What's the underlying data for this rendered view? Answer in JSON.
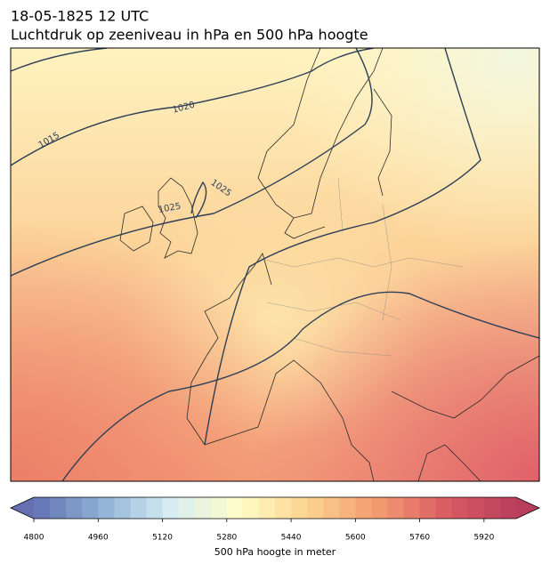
{
  "title": {
    "line1": "18-05-1825 12 UTC",
    "line2": "Luchtdruk op zeeniveau in hPa en 500 hPa hoogte"
  },
  "contour_labels": [
    "1015",
    "1020",
    "1025",
    "1025"
  ],
  "colorbar": {
    "label": "500 hPa hoogte in meter",
    "lim": [
      4800,
      6000
    ],
    "step": 40,
    "ticks": [
      4800,
      4960,
      5120,
      5280,
      5440,
      5600,
      5760,
      5920
    ],
    "colormap": [
      "#6470b2",
      "#8fb2d6",
      "#d8eef3",
      "#fffcc6",
      "#fcd28f",
      "#f39a70",
      "#d85c62",
      "#b93d5c"
    ]
  }
}
